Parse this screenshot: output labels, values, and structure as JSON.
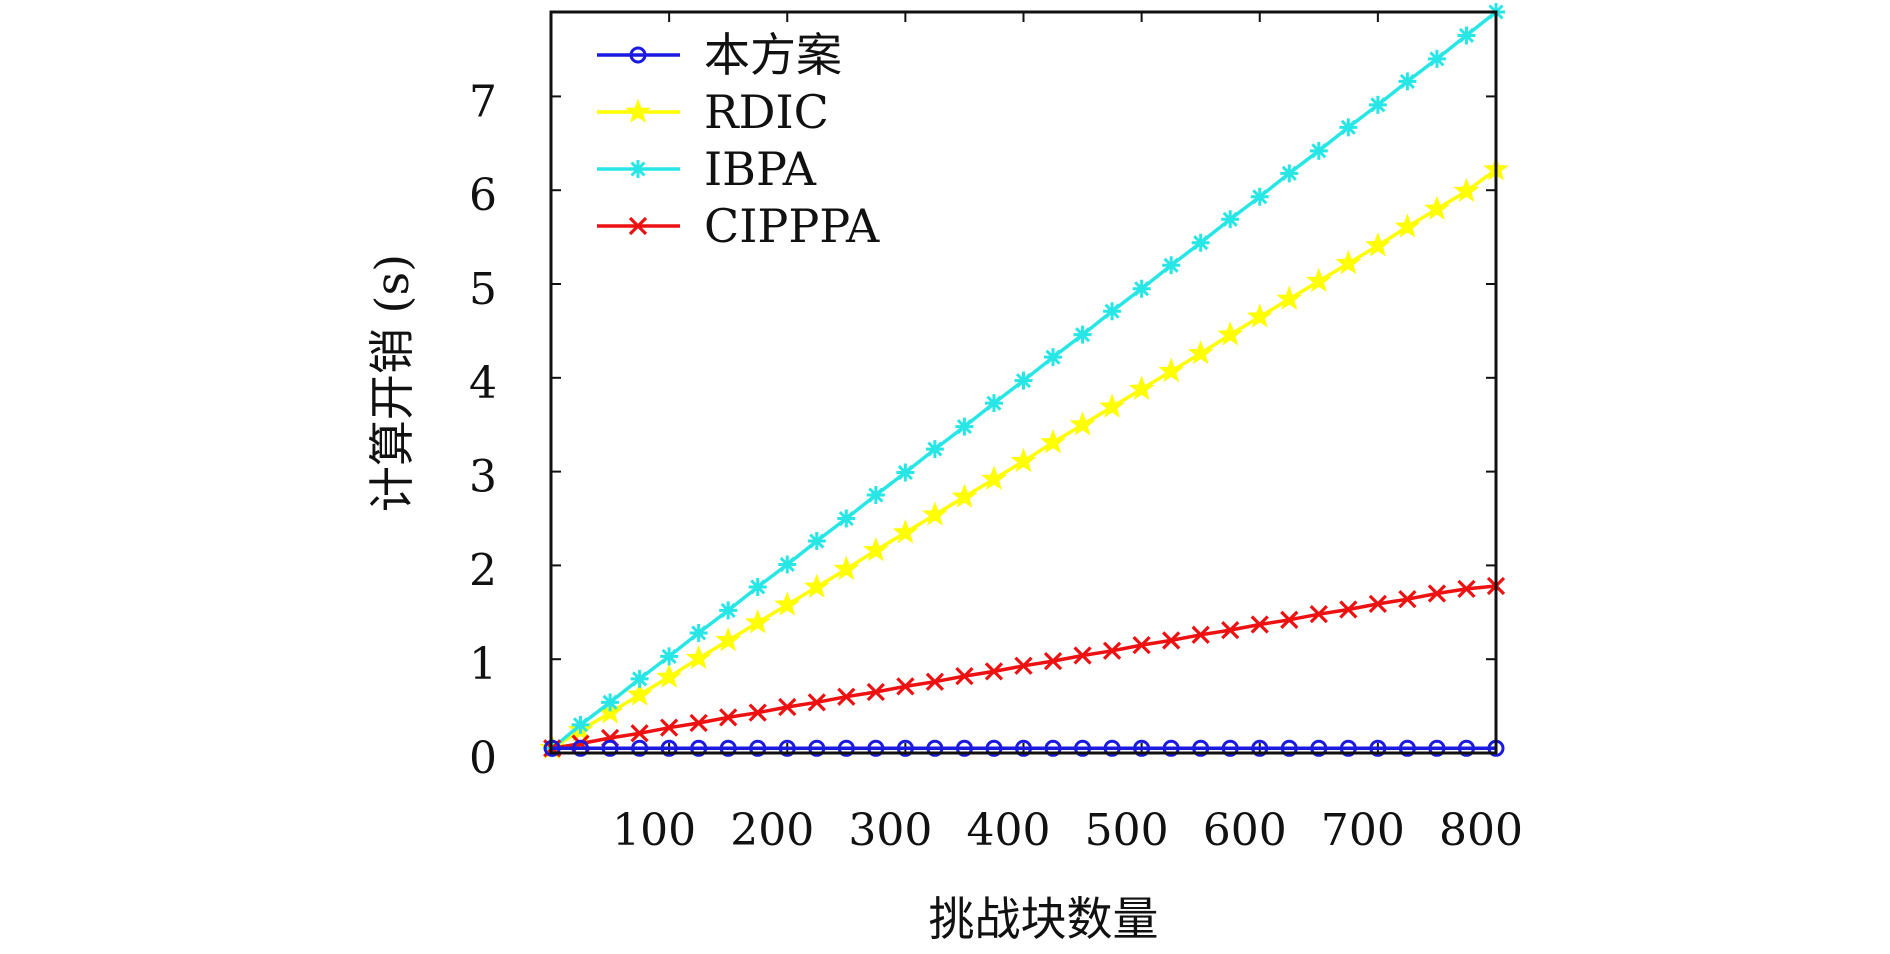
{
  "chart_data": {
    "type": "line",
    "title": "",
    "xlabel": "挑战块数量",
    "ylabel": "计算开销 (s)",
    "xlim": [
      0,
      800
    ],
    "ylim": [
      0,
      7.9
    ],
    "x_ticks": [
      100,
      200,
      300,
      400,
      500,
      600,
      700,
      800
    ],
    "y_ticks": [
      0,
      1,
      2,
      3,
      4,
      5,
      6,
      7
    ],
    "x_tick_labels": [
      "100",
      "200",
      "300",
      "400",
      "500",
      "600",
      "700",
      "800"
    ],
    "y_tick_labels": [
      "0",
      "1",
      "2",
      "3",
      "4",
      "5",
      "6",
      "7"
    ],
    "grid": false,
    "legend_position": "top-left",
    "x": [
      1,
      25,
      50,
      75,
      100,
      125,
      150,
      175,
      200,
      225,
      250,
      275,
      300,
      325,
      350,
      375,
      400,
      425,
      450,
      475,
      500,
      525,
      550,
      575,
      600,
      625,
      650,
      675,
      700,
      725,
      750,
      775,
      800
    ],
    "series": [
      {
        "name": "本方案",
        "color": "#1a1ae0",
        "marker": "circle",
        "values": [
          0.05,
          0.05,
          0.05,
          0.05,
          0.05,
          0.05,
          0.05,
          0.05,
          0.05,
          0.05,
          0.05,
          0.05,
          0.05,
          0.05,
          0.05,
          0.05,
          0.05,
          0.05,
          0.05,
          0.05,
          0.05,
          0.05,
          0.05,
          0.05,
          0.05,
          0.05,
          0.05,
          0.05,
          0.05,
          0.05,
          0.05,
          0.05,
          0.05
        ]
      },
      {
        "name": "RDIC",
        "color": "#ffff00",
        "marker": "star",
        "values": [
          0.05,
          0.24,
          0.43,
          0.62,
          0.81,
          1.01,
          1.2,
          1.39,
          1.58,
          1.77,
          1.96,
          2.16,
          2.35,
          2.54,
          2.73,
          2.92,
          3.11,
          3.31,
          3.5,
          3.69,
          3.88,
          4.07,
          4.26,
          4.46,
          4.65,
          4.84,
          5.03,
          5.22,
          5.41,
          5.61,
          5.8,
          5.99,
          6.22
        ]
      },
      {
        "name": "IBPA",
        "color": "#28e6e6",
        "marker": "asterisk",
        "values": [
          0.05,
          0.3,
          0.54,
          0.79,
          1.03,
          1.28,
          1.52,
          1.77,
          2.01,
          2.26,
          2.5,
          2.75,
          2.99,
          3.24,
          3.48,
          3.73,
          3.97,
          4.22,
          4.46,
          4.71,
          4.95,
          5.2,
          5.44,
          5.69,
          5.93,
          6.18,
          6.42,
          6.67,
          6.91,
          7.16,
          7.4,
          7.65,
          7.9
        ]
      },
      {
        "name": "CIPPPA",
        "color": "#ee1111",
        "marker": "x",
        "values": [
          0.05,
          0.1,
          0.16,
          0.21,
          0.27,
          0.32,
          0.38,
          0.43,
          0.49,
          0.54,
          0.6,
          0.65,
          0.71,
          0.76,
          0.82,
          0.87,
          0.93,
          0.98,
          1.04,
          1.09,
          1.15,
          1.2,
          1.26,
          1.31,
          1.37,
          1.42,
          1.48,
          1.53,
          1.59,
          1.64,
          1.7,
          1.75,
          1.78
        ]
      }
    ]
  }
}
